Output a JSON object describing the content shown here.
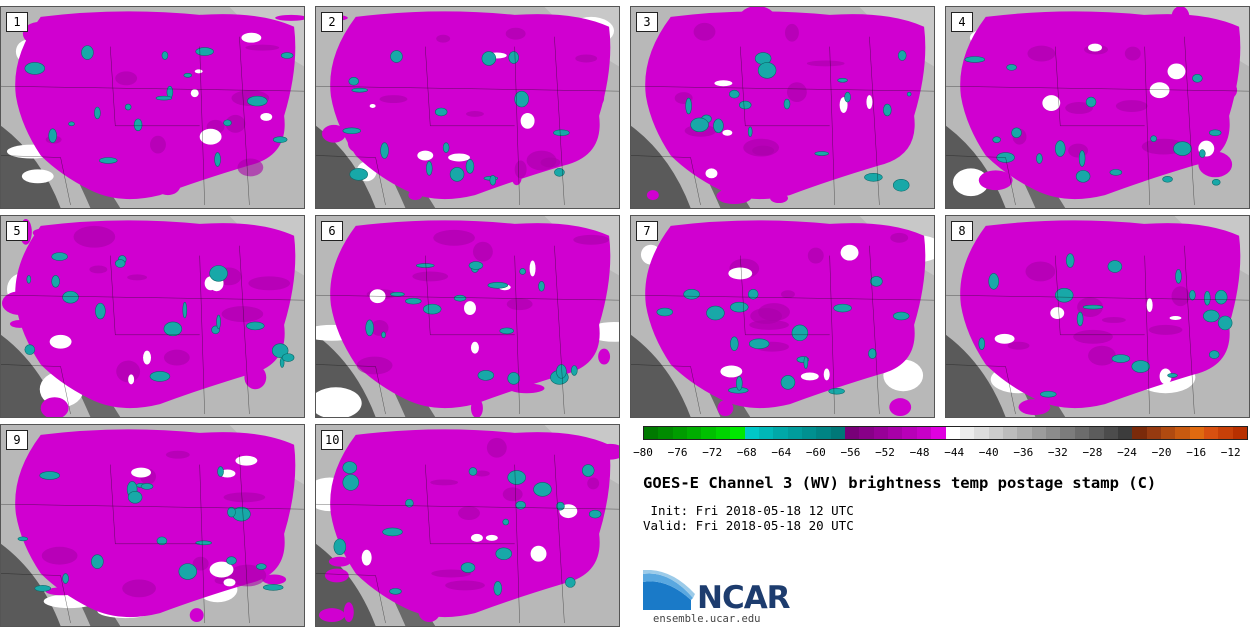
{
  "panels": [
    {
      "label": "1"
    },
    {
      "label": "2"
    },
    {
      "label": "3"
    },
    {
      "label": "4"
    },
    {
      "label": "5"
    },
    {
      "label": "6"
    },
    {
      "label": "7"
    },
    {
      "label": "8"
    },
    {
      "label": "9"
    },
    {
      "label": "10"
    }
  ],
  "colorbar": {
    "colors": [
      "#007a00",
      "#008b00",
      "#009c00",
      "#00ad00",
      "#00c000",
      "#00d400",
      "#00e800",
      "#00c8c8",
      "#00b8b8",
      "#00a8a8",
      "#009c9c",
      "#009090",
      "#008484",
      "#007878",
      "#780078",
      "#880088",
      "#980098",
      "#a800a8",
      "#b800b8",
      "#c800c8",
      "#e000e0",
      "#ffffff",
      "#ececec",
      "#dcdcdc",
      "#cccccc",
      "#bcbcbc",
      "#acacac",
      "#9c9c9c",
      "#8c8c8c",
      "#7c7c7c",
      "#6c6c6c",
      "#5c5c5c",
      "#4c4c4c",
      "#3c3c3c",
      "#7a2a0a",
      "#963a10",
      "#b04a10",
      "#c85a10",
      "#e06a10",
      "#d85010",
      "#c84008",
      "#b83000"
    ],
    "ticks": [
      "−80",
      "−76",
      "−72",
      "−68",
      "−64",
      "−60",
      "−56",
      "−52",
      "−48",
      "−44",
      "−40",
      "−36",
      "−32",
      "−28",
      "−24",
      "−20",
      "−16",
      "−12"
    ],
    "min": -80,
    "max": -10
  },
  "header": {
    "title": "GOES-E Channel 3 (WV) brightness temp postage stamp (C)",
    "init": " Init: Fri 2018-05-18 12 UTC",
    "valid": "Valid: Fri 2018-05-18 20 UTC"
  },
  "logo": {
    "org": "NCAR",
    "site": "ensemble.ucar.edu"
  },
  "map_colors": {
    "magenta": "#d000d0",
    "teal": "#18a8a8",
    "gray_light": "#b8b8b8",
    "gray_dark": "#5a5a5a",
    "white": "#ffffff"
  }
}
